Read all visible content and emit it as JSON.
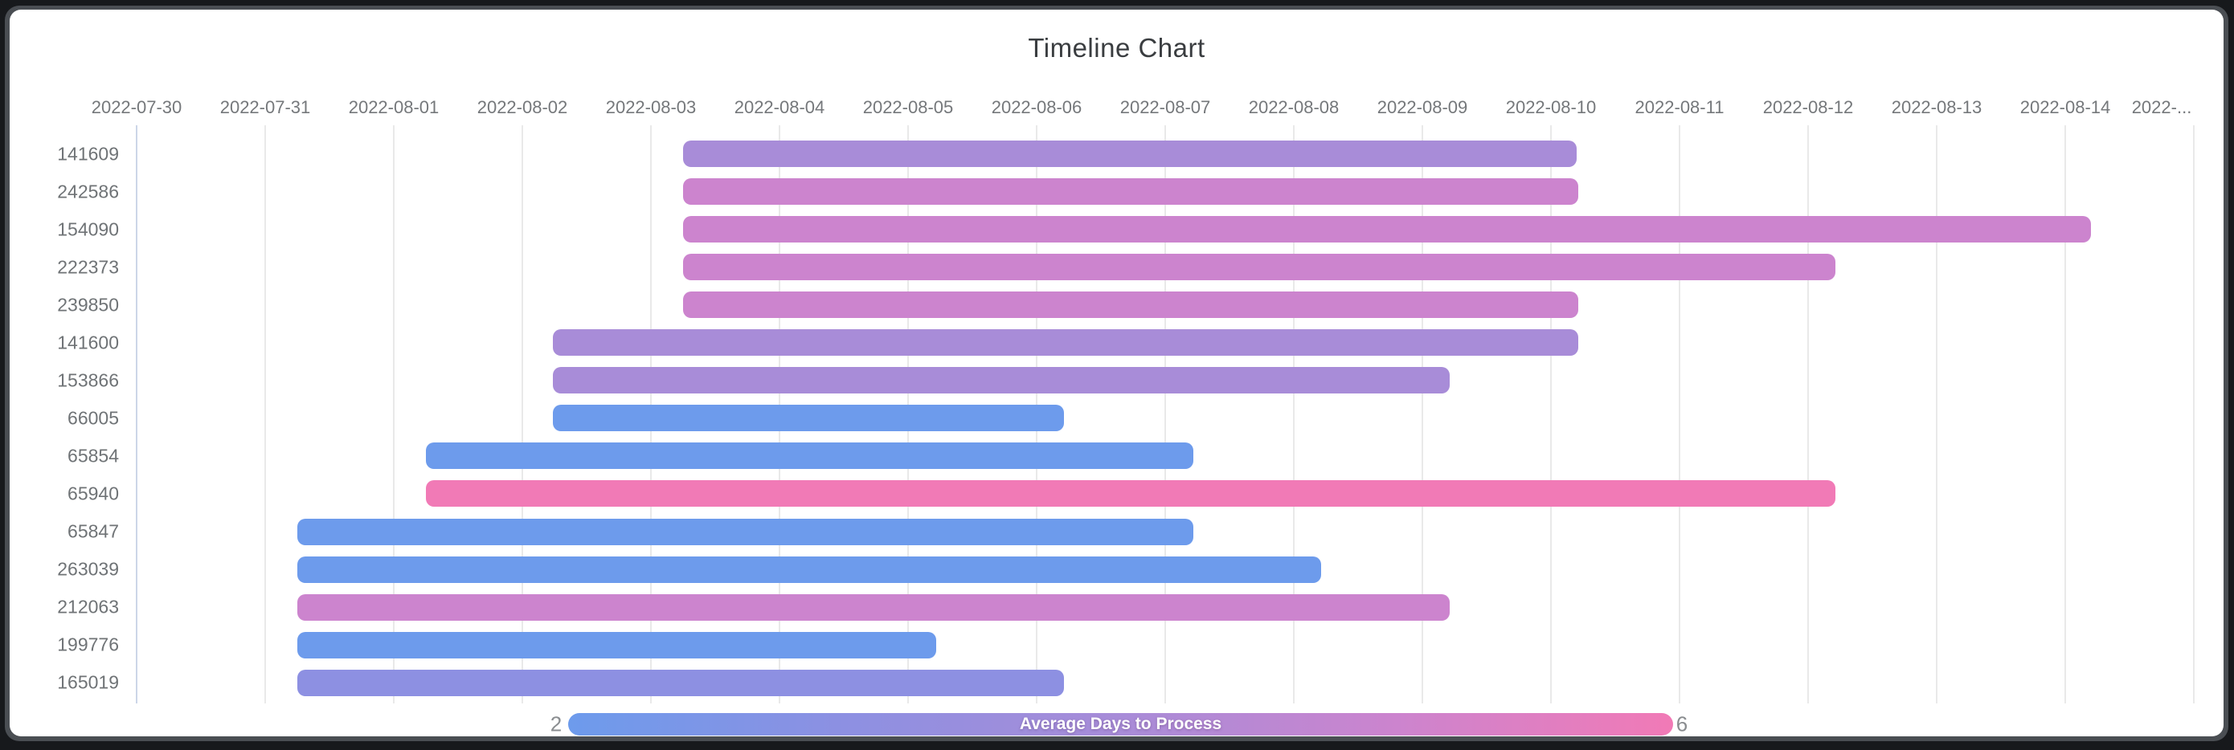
{
  "window": {
    "frame_color": "#17191c",
    "card_color": "#ffffff"
  },
  "chart_data": {
    "type": "timeline",
    "title": "Timeline Chart",
    "x_axis": {
      "unit": "date",
      "range_start": "2022-07-30",
      "range_end": "2022-08-15",
      "gridlines": true,
      "tick_labels": [
        "2022-07-30",
        "2022-07-31",
        "2022-08-01",
        "2022-08-02",
        "2022-08-03",
        "2022-08-04",
        "2022-08-05",
        "2022-08-06",
        "2022-08-07",
        "2022-08-08",
        "2022-08-09",
        "2022-08-10",
        "2022-08-11",
        "2022-08-12",
        "2022-08-13",
        "2022-08-14",
        "2022-..."
      ]
    },
    "rows": [
      {
        "label": "141609",
        "start_day": 4.25,
        "end_day": 11.2,
        "color": "#A88CD8"
      },
      {
        "label": "242586",
        "start_day": 4.25,
        "end_day": 11.21,
        "color": "#CC84CE"
      },
      {
        "label": "154090",
        "start_day": 4.25,
        "end_day": 15.2,
        "color": "#CC84CE"
      },
      {
        "label": "222373",
        "start_day": 4.25,
        "end_day": 13.21,
        "color": "#CC84CE"
      },
      {
        "label": "239850",
        "start_day": 4.25,
        "end_day": 11.21,
        "color": "#CC84CE"
      },
      {
        "label": "141600",
        "start_day": 3.24,
        "end_day": 11.21,
        "color": "#A88CD8"
      },
      {
        "label": "153866",
        "start_day": 3.24,
        "end_day": 10.21,
        "color": "#A88CD8"
      },
      {
        "label": "66005",
        "start_day": 3.24,
        "end_day": 7.21,
        "color": "#6D9BEC"
      },
      {
        "label": "65854",
        "start_day": 2.25,
        "end_day": 8.22,
        "color": "#6D9BEC"
      },
      {
        "label": "65940",
        "start_day": 2.25,
        "end_day": 13.21,
        "color": "#F17AB6"
      },
      {
        "label": "65847",
        "start_day": 1.25,
        "end_day": 8.22,
        "color": "#6D9BEC"
      },
      {
        "label": "263039",
        "start_day": 1.25,
        "end_day": 9.21,
        "color": "#6D9BEC"
      },
      {
        "label": "212063",
        "start_day": 1.25,
        "end_day": 10.21,
        "color": "#CC84CE"
      },
      {
        "label": "199776",
        "start_day": 1.25,
        "end_day": 6.22,
        "color": "#6D9BEC"
      },
      {
        "label": "165019",
        "start_day": 1.25,
        "end_day": 7.21,
        "color": "#8D90E2"
      }
    ],
    "legend": {
      "label": "Average Days to Process",
      "min_label": "2",
      "max_label": "6",
      "gradient_colors": [
        "#6D9BEC",
        "#8D90E2",
        "#A88CD8",
        "#CC84CE",
        "#F17AB6"
      ],
      "position": "bottom"
    }
  },
  "colors": {
    "grid_line": "#e9e9e9",
    "axis_baseline": "#ccd6e8",
    "tick_text": "#75787b",
    "row_label_text": "#6f7376",
    "title_text": "#3a3d40",
    "legend_minmax_text": "#8a8d90"
  }
}
